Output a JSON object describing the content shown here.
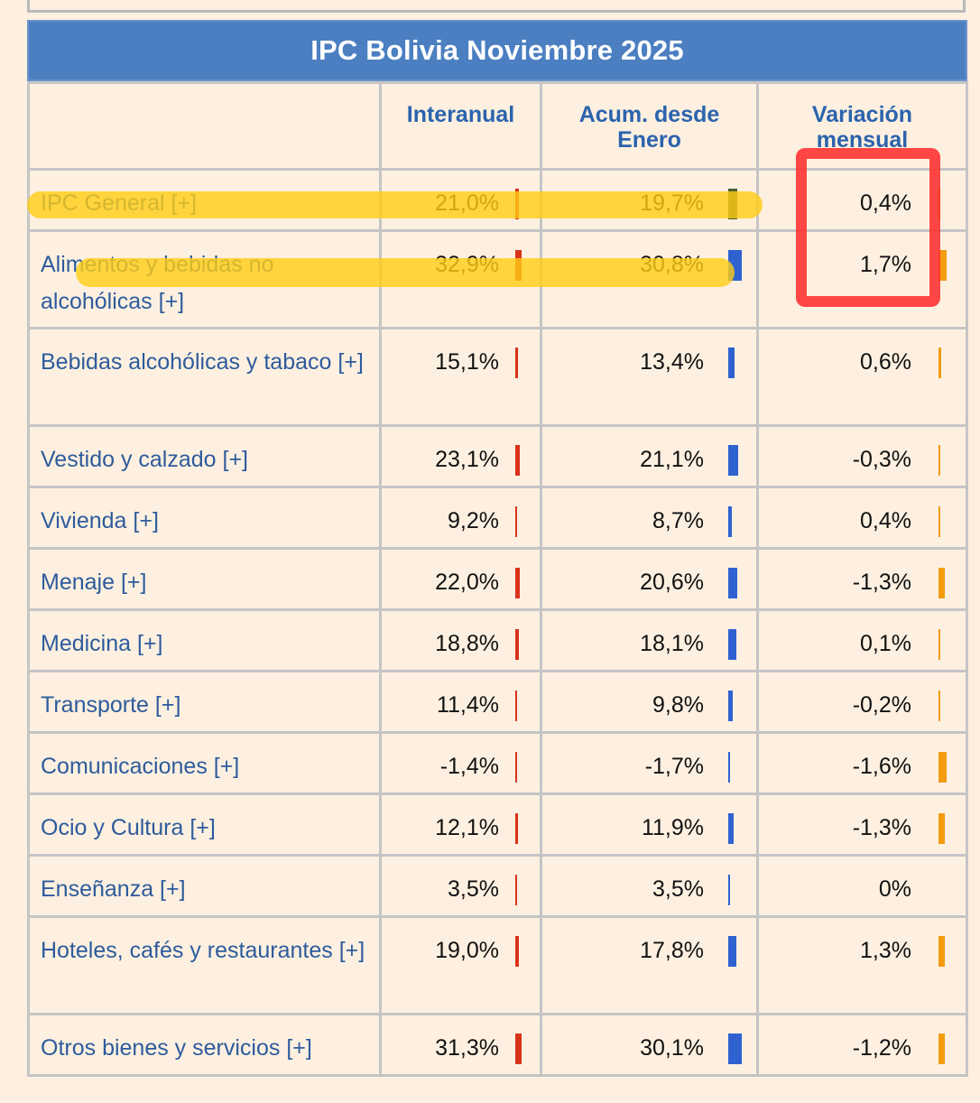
{
  "title": "IPC Bolivia Noviembre 2025",
  "headers": [
    "",
    "Interanual",
    "Acum. desde Enero",
    "Variación mensual"
  ],
  "colors": {
    "title_bg": "#4b7fc1",
    "interanual_bar": "#d9321a",
    "acumulado_bar": "#2f62d0",
    "mensual_bar": "#f39c12",
    "page_bg": "#fdf0e0"
  },
  "rows": [
    {
      "name": "IPC General [+]",
      "interanual": "21,0%",
      "acumulado": "19,7%",
      "mensual": "0,4%",
      "interanual_v": 21.0,
      "acumulado_v": 19.7,
      "mensual_v": 0.4
    },
    {
      "name": "Alimentos y bebidas no alcohólicas [+]",
      "interanual": "32,9%",
      "acumulado": "30,8%",
      "mensual": "1,7%",
      "interanual_v": 32.9,
      "acumulado_v": 30.8,
      "mensual_v": 1.7
    },
    {
      "name": "Bebidas alcohólicas y tabaco [+]",
      "interanual": "15,1%",
      "acumulado": "13,4%",
      "mensual": "0,6%",
      "interanual_v": 15.1,
      "acumulado_v": 13.4,
      "mensual_v": 0.6
    },
    {
      "name": "Vestido y calzado [+]",
      "interanual": "23,1%",
      "acumulado": "21,1%",
      "mensual": "-0,3%",
      "interanual_v": 23.1,
      "acumulado_v": 21.1,
      "mensual_v": -0.3
    },
    {
      "name": "Vivienda [+]",
      "interanual": "9,2%",
      "acumulado": "8,7%",
      "mensual": "0,4%",
      "interanual_v": 9.2,
      "acumulado_v": 8.7,
      "mensual_v": 0.4
    },
    {
      "name": "Menaje [+]",
      "interanual": "22,0%",
      "acumulado": "20,6%",
      "mensual": "-1,3%",
      "interanual_v": 22.0,
      "acumulado_v": 20.6,
      "mensual_v": -1.3
    },
    {
      "name": "Medicina [+]",
      "interanual": "18,8%",
      "acumulado": "18,1%",
      "mensual": "0,1%",
      "interanual_v": 18.8,
      "acumulado_v": 18.1,
      "mensual_v": 0.1
    },
    {
      "name": "Transporte [+]",
      "interanual": "11,4%",
      "acumulado": "9,8%",
      "mensual": "-0,2%",
      "interanual_v": 11.4,
      "acumulado_v": 9.8,
      "mensual_v": -0.2
    },
    {
      "name": "Comunicaciones [+]",
      "interanual": "-1,4%",
      "acumulado": "-1,7%",
      "mensual": "-1,6%",
      "interanual_v": -1.4,
      "acumulado_v": -1.7,
      "mensual_v": -1.6
    },
    {
      "name": "Ocio y Cultura [+]",
      "interanual": "12,1%",
      "acumulado": "11,9%",
      "mensual": "-1,3%",
      "interanual_v": 12.1,
      "acumulado_v": 11.9,
      "mensual_v": -1.3
    },
    {
      "name": "Enseñanza [+]",
      "interanual": "3,5%",
      "acumulado": "3,5%",
      "mensual": "0%",
      "interanual_v": 3.5,
      "acumulado_v": 3.5,
      "mensual_v": 0
    },
    {
      "name": "Hoteles, cafés y restaurantes [+]",
      "interanual": "19,0%",
      "acumulado": "17,8%",
      "mensual": "1,3%",
      "interanual_v": 19.0,
      "acumulado_v": 17.8,
      "mensual_v": 1.3
    },
    {
      "name": "Otros bienes y servicios [+]",
      "interanual": "31,3%",
      "acumulado": "30,1%",
      "mensual": "-1,2%",
      "interanual_v": 31.3,
      "acumulado_v": 30.1,
      "mensual_v": -1.2
    }
  ]
}
